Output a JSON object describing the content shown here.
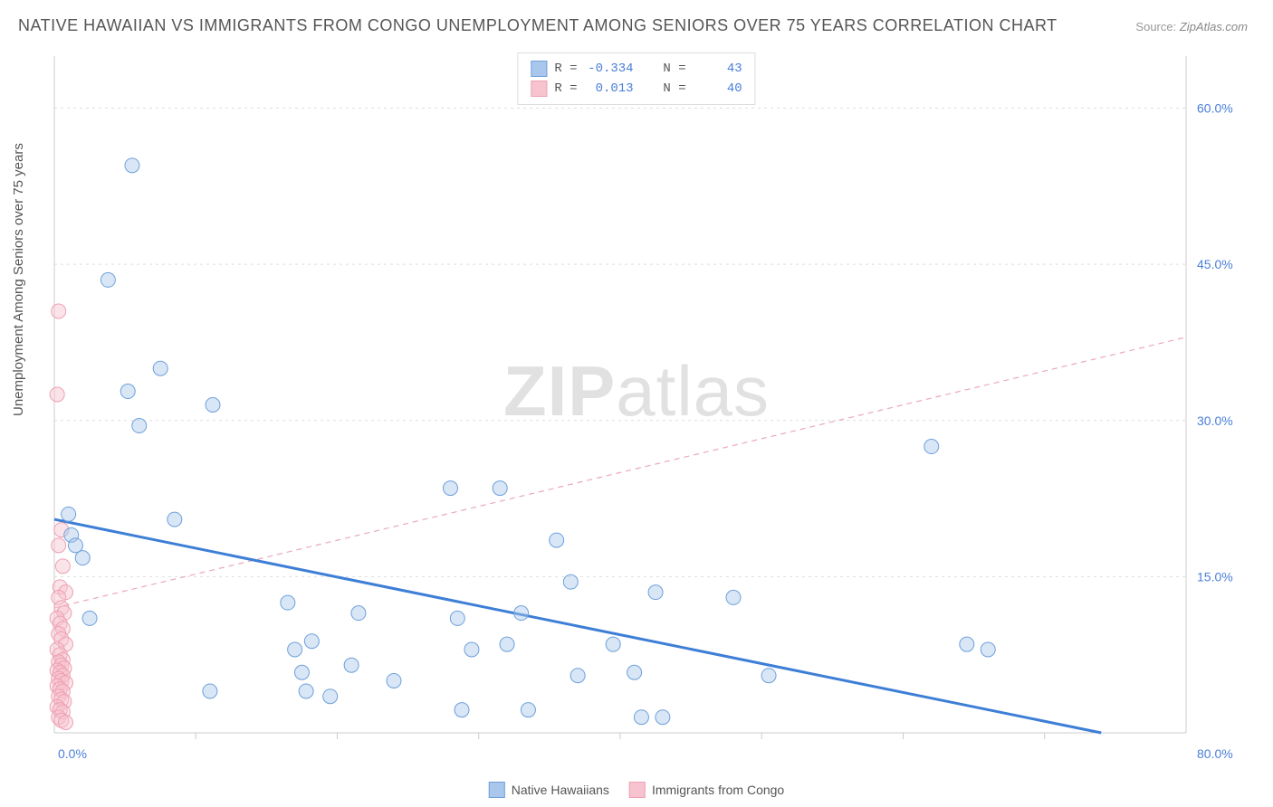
{
  "title": "NATIVE HAWAIIAN VS IMMIGRANTS FROM CONGO UNEMPLOYMENT AMONG SENIORS OVER 75 YEARS CORRELATION CHART",
  "source_label": "Source:",
  "source_value": "ZipAtlas.com",
  "ylabel": "Unemployment Among Seniors over 75 years",
  "watermark_bold": "ZIP",
  "watermark_rest": "atlas",
  "chart": {
    "type": "scatter",
    "background_color": "#ffffff",
    "grid_color": "#dddddd",
    "axis_color": "#cccccc",
    "axis_label_color": "#4a7fd8",
    "title_color": "#555555",
    "title_fontsize": 18,
    "label_fontsize": 15,
    "tick_fontsize": 14,
    "xlim": [
      0,
      80
    ],
    "ylim": [
      0,
      65
    ],
    "x_ticks_major": [
      0,
      80
    ],
    "x_ticks_minor": [
      10,
      20,
      30,
      40,
      50,
      60,
      70
    ],
    "x_tick_labels": [
      "0.0%",
      "80.0%"
    ],
    "y_ticks": [
      15,
      30,
      45,
      60
    ],
    "y_tick_labels": [
      "15.0%",
      "30.0%",
      "45.0%",
      "60.0%"
    ],
    "marker_radius": 8,
    "marker_opacity": 0.45,
    "series": [
      {
        "name": "Native Hawaiians",
        "color_fill": "#a9c7ec",
        "color_stroke": "#6ea0db",
        "R": "-0.334",
        "N": "43",
        "trend": {
          "x1": 0,
          "y1": 20.5,
          "x2": 74,
          "y2": 0,
          "stroke": "#3d7ed6",
          "width": 3,
          "dash": "none"
        },
        "points": [
          [
            1.0,
            21.0
          ],
          [
            1.2,
            19.0
          ],
          [
            1.5,
            18.0
          ],
          [
            2.0,
            16.8
          ],
          [
            2.5,
            11.0
          ],
          [
            3.8,
            43.5
          ],
          [
            5.2,
            32.8
          ],
          [
            5.5,
            54.5
          ],
          [
            6.0,
            29.5
          ],
          [
            7.5,
            35.0
          ],
          [
            8.5,
            20.5
          ],
          [
            11.2,
            31.5
          ],
          [
            11.0,
            4.0
          ],
          [
            16.5,
            12.5
          ],
          [
            17.0,
            8.0
          ],
          [
            17.5,
            5.8
          ],
          [
            17.8,
            4.0
          ],
          [
            18.2,
            8.8
          ],
          [
            19.5,
            3.5
          ],
          [
            21.0,
            6.5
          ],
          [
            21.5,
            11.5
          ],
          [
            24.0,
            5.0
          ],
          [
            28.0,
            23.5
          ],
          [
            28.5,
            11.0
          ],
          [
            28.8,
            2.2
          ],
          [
            29.5,
            8.0
          ],
          [
            31.5,
            23.5
          ],
          [
            32.0,
            8.5
          ],
          [
            33.0,
            11.5
          ],
          [
            33.5,
            2.2
          ],
          [
            35.5,
            18.5
          ],
          [
            36.5,
            14.5
          ],
          [
            37.0,
            5.5
          ],
          [
            39.5,
            8.5
          ],
          [
            41.0,
            5.8
          ],
          [
            41.5,
            1.5
          ],
          [
            42.5,
            13.5
          ],
          [
            43.0,
            1.5
          ],
          [
            48.0,
            13.0
          ],
          [
            50.5,
            5.5
          ],
          [
            62.0,
            27.5
          ],
          [
            64.5,
            8.5
          ],
          [
            66.0,
            8.0
          ]
        ]
      },
      {
        "name": "Immigrants from Congo",
        "color_fill": "#f6c3cf",
        "color_stroke": "#eea0b3",
        "R": "0.013",
        "N": "40",
        "trend": {
          "x1": 0,
          "y1": 12.0,
          "x2": 80,
          "y2": 38.0,
          "stroke": "#e9a9b9",
          "width": 1.2,
          "dash": "6,5"
        },
        "points": [
          [
            0.3,
            40.5
          ],
          [
            0.2,
            32.5
          ],
          [
            0.5,
            19.5
          ],
          [
            0.3,
            18.0
          ],
          [
            0.6,
            16.0
          ],
          [
            0.4,
            14.0
          ],
          [
            0.8,
            13.5
          ],
          [
            0.3,
            13.0
          ],
          [
            0.5,
            12.0
          ],
          [
            0.7,
            11.5
          ],
          [
            0.2,
            11.0
          ],
          [
            0.4,
            10.5
          ],
          [
            0.6,
            10.0
          ],
          [
            0.3,
            9.5
          ],
          [
            0.5,
            9.0
          ],
          [
            0.8,
            8.5
          ],
          [
            0.2,
            8.0
          ],
          [
            0.4,
            7.5
          ],
          [
            0.6,
            7.0
          ],
          [
            0.3,
            6.8
          ],
          [
            0.5,
            6.5
          ],
          [
            0.7,
            6.2
          ],
          [
            0.2,
            6.0
          ],
          [
            0.4,
            5.8
          ],
          [
            0.6,
            5.5
          ],
          [
            0.3,
            5.2
          ],
          [
            0.5,
            5.0
          ],
          [
            0.8,
            4.8
          ],
          [
            0.2,
            4.5
          ],
          [
            0.4,
            4.2
          ],
          [
            0.6,
            4.0
          ],
          [
            0.3,
            3.5
          ],
          [
            0.5,
            3.2
          ],
          [
            0.7,
            3.0
          ],
          [
            0.2,
            2.5
          ],
          [
            0.4,
            2.2
          ],
          [
            0.6,
            2.0
          ],
          [
            0.3,
            1.5
          ],
          [
            0.5,
            1.2
          ],
          [
            0.8,
            1.0
          ]
        ]
      }
    ]
  },
  "legend_top_prefix_R": "R =",
  "legend_top_prefix_N": "N =",
  "legend_bottom": [
    {
      "label": "Native Hawaiians",
      "fill": "#a9c7ec",
      "stroke": "#6ea0db"
    },
    {
      "label": "Immigrants from Congo",
      "fill": "#f6c3cf",
      "stroke": "#eea0b3"
    }
  ]
}
